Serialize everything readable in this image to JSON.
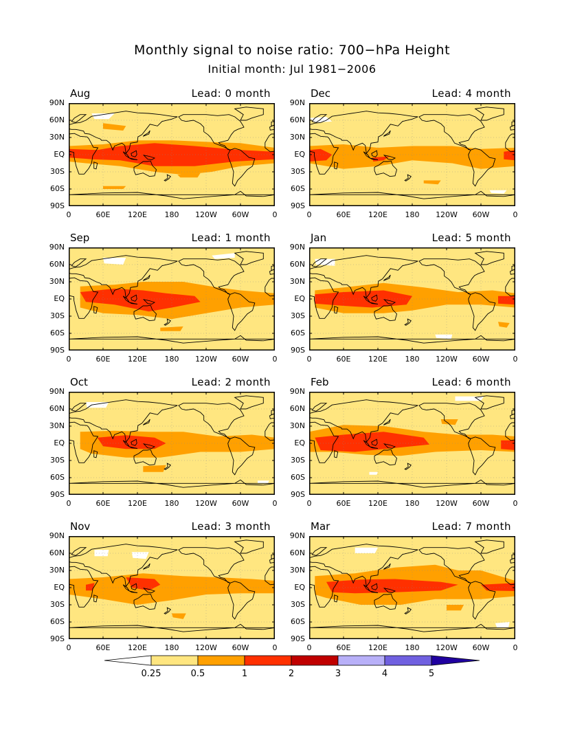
{
  "title": "Monthly signal to noise ratio: 700−hPa Height",
  "subtitle": "Initial month: Jul 1981−2006",
  "y_ticks": [
    "90N",
    "60N",
    "30N",
    "EQ",
    "30S",
    "60S",
    "90S"
  ],
  "x_ticks": [
    "0",
    "60E",
    "120E",
    "180",
    "120W",
    "60W",
    "0"
  ],
  "panels": [
    {
      "month": "Aug",
      "lead": "Lead: 0 month"
    },
    {
      "month": "Dec",
      "lead": "Lead: 4 month"
    },
    {
      "month": "Sep",
      "lead": "Lead: 1 month"
    },
    {
      "month": "Jan",
      "lead": "Lead: 5 month"
    },
    {
      "month": "Oct",
      "lead": "Lead: 2 month"
    },
    {
      "month": "Feb",
      "lead": "Lead: 6 month"
    },
    {
      "month": "Nov",
      "lead": "Lead: 3 month"
    },
    {
      "month": "Mar",
      "lead": "Lead: 7 month"
    }
  ],
  "colorbar": {
    "labels": [
      "0.25",
      "0.5",
      "1",
      "2",
      "3",
      "4",
      "5"
    ],
    "colors": [
      "#ffffff",
      "#ffe680",
      "#ffa000",
      "#ff3000",
      "#c00000",
      "#b8b0f8",
      "#7060e0",
      "#2000a0"
    ]
  }
}
